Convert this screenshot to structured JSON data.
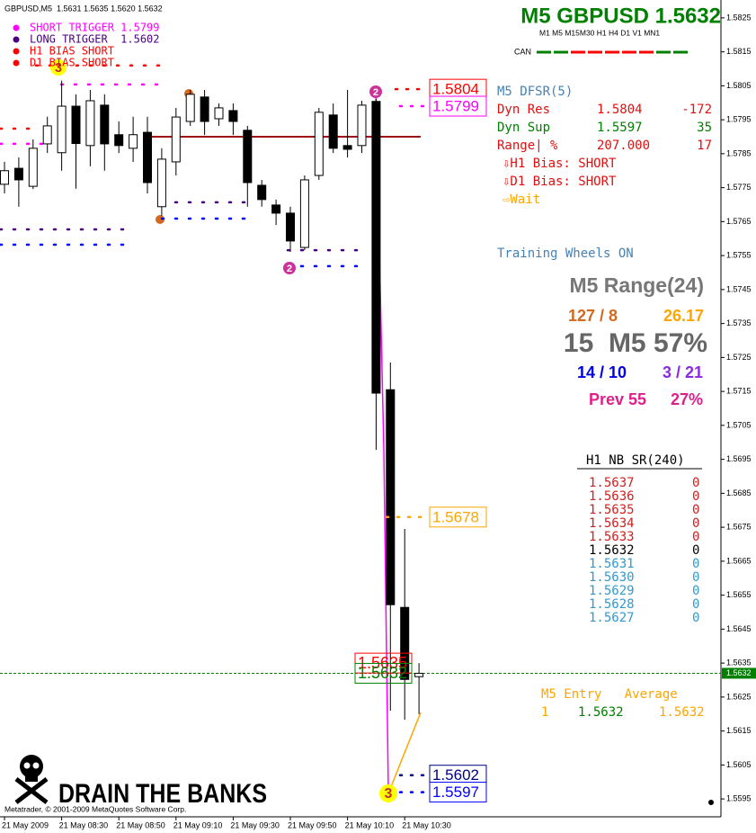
{
  "chart_data": {
    "type": "candlestick",
    "title": "GBPUSD,M5  1.5631 1.5635 1.5620 1.5632",
    "categories": [
      "21 May 2009",
      null,
      null,
      null,
      "21 May 08:30",
      null,
      null,
      null,
      "21 May 08:50",
      null,
      null,
      null,
      "21 May 09:10",
      null,
      null,
      null,
      "21 May 09:30",
      null,
      null,
      null,
      "21 May 09:50",
      null,
      null,
      null,
      "21 May 10:10",
      null,
      null,
      null,
      "21 May 10:30",
      null
    ],
    "open": [
      1.5776,
      1.57807,
      1.57754,
      1.57879,
      1.57853,
      1.5799,
      1.57874,
      1.57993,
      1.57906,
      1.57866,
      1.57913,
      1.57694,
      1.57826,
      1.57945,
      1.58017,
      1.57953,
      1.57977,
      1.57919,
      1.57757,
      1.57699,
      1.57675,
      1.57574,
      1.57786,
      1.57964,
      1.57874,
      1.57874,
      1.58004,
      1.57155,
      1.56514,
      1.5631
    ],
    "high": [
      1.57826,
      1.57839,
      1.57892,
      1.57959,
      1.58065,
      1.58025,
      1.58038,
      1.58025,
      1.57945,
      1.57959,
      1.57959,
      1.57866,
      1.57985,
      1.58038,
      1.58038,
      1.57998,
      1.57998,
      1.57932,
      1.57773,
      1.57715,
      1.57694,
      1.57786,
      1.57985,
      1.57998,
      1.58038,
      1.58006,
      1.58011,
      1.57235,
      1.56745,
      1.5635
    ],
    "low": [
      1.57733,
      1.57694,
      1.57746,
      1.57852,
      1.578,
      1.57747,
      1.57813,
      1.578,
      1.57852,
      1.57826,
      1.57733,
      1.57667,
      1.57786,
      1.57932,
      1.57905,
      1.57932,
      1.57905,
      1.57694,
      1.57694,
      1.5764,
      1.57561,
      1.57566,
      1.57773,
      1.57852,
      1.57839,
      1.57852,
      1.56978,
      1.5621,
      1.56183,
      1.562
    ],
    "close": [
      1.578,
      1.57773,
      1.57866,
      1.57932,
      1.5799,
      1.5788,
      1.58006,
      1.57879,
      1.57874,
      1.57906,
      1.57765,
      1.57834,
      1.57958,
      1.58025,
      1.57945,
      1.57985,
      1.57945,
      1.57765,
      1.57715,
      1.57675,
      1.57593,
      1.57773,
      1.57972,
      1.57866,
      1.57863,
      1.57993,
      1.57145,
      1.56522,
      1.56302,
      1.5632
    ],
    "up_color": "#ffffff",
    "down_color": "#000000",
    "ylim": [
      1.559,
      1.583
    ],
    "yticks": [
      1.5595,
      1.5605,
      1.5615,
      1.5625,
      1.5635,
      1.5645,
      1.5655,
      1.5665,
      1.5675,
      1.5685,
      1.5695,
      1.5705,
      1.5715,
      1.5725,
      1.5735,
      1.5745,
      1.5755,
      1.5765,
      1.5775,
      1.5785,
      1.5795,
      1.5805,
      1.5815,
      1.5825
    ],
    "current_price": 1.5632,
    "current_price_color": "#008000",
    "levels": [
      {
        "value": 1.579,
        "color": "#a01010"
      }
    ],
    "dot_levels": [
      {
        "value": 1.5811,
        "color": "#ff0000"
      },
      {
        "value": 1.58054,
        "color": "#ff00ff"
      },
      {
        "value": 1.57924,
        "color": "#ff0000"
      },
      {
        "value": 1.57879,
        "color": "#ff00ff"
      },
      {
        "value": 1.57627,
        "color": "#4b0082"
      },
      {
        "value": 1.57582,
        "color": "#0000ff"
      },
      {
        "value": 1.57707,
        "color": "#4b0082"
      },
      {
        "value": 1.57659,
        "color": "#0000ff"
      },
      {
        "value": 1.57566,
        "color": "#4b0082"
      },
      {
        "value": 1.57519,
        "color": "#0000ff"
      }
    ],
    "price_labels": [
      {
        "value": 1.5804,
        "color": "#ff0000"
      },
      {
        "value": 1.5799,
        "color": "#ff00ff"
      },
      {
        "value": 1.5678,
        "color": "#ffa500"
      },
      {
        "value": 1.5602,
        "color": "#000080"
      },
      {
        "value": 1.5597,
        "color": "#0000ff"
      },
      {
        "value": 1.5635,
        "color": "#ff0000"
      },
      {
        "value": 1.5632,
        "color": "#008000"
      }
    ],
    "markers": [
      {
        "label": "3",
        "color": "#ffff00"
      },
      {
        "label": "2",
        "color": "#cc3399"
      },
      {
        "label": "2",
        "color": "#cc3399"
      },
      {
        "label": "3",
        "color": "#ffff00"
      }
    ]
  },
  "overlay": {
    "legend": [
      "SHORT TRIGGER 1.5799",
      "LONG TRIGGER  1.5602",
      "H1 BIAS SHORT",
      "D1 BIAS SHORT"
    ],
    "symbol_title": "M5 GBPUSD 1.5632",
    "timeframes": "M1 M5 M15M30 H1 H4 D1 V1 MN1",
    "can": "CAN",
    "dfsr": {
      "title": "M5 DFSR(5)",
      "rows": [
        [
          "Dyn Res",
          "1.5804",
          "-172"
        ],
        [
          "Dyn Sup",
          "1.5597",
          "35"
        ],
        [
          "Range| %",
          "207.000",
          "17"
        ]
      ],
      "h1_bias": "⇩H1 Bias: SHORT",
      "d1_bias": "⇩D1 Bias: SHORT",
      "wait": "⇨Wait"
    },
    "training": "Training Wheels ON",
    "range": {
      "title": "M5 Range(24)",
      "a": "127 / 8",
      "b": "26.17",
      "big": "15  M5 57%",
      "c": "14 / 10",
      "d": "3 / 21",
      "prev": "Prev 55",
      "prev_pct": "27%"
    },
    "nbsr": {
      "title": "H1 NB SR(240)",
      "rows": [
        [
          "1.5637",
          "0"
        ],
        [
          "1.5636",
          "0"
        ],
        [
          "1.5635",
          "0"
        ],
        [
          "1.5634",
          "0"
        ],
        [
          "1.5633",
          "0"
        ],
        [
          "1.5632",
          "0"
        ],
        [
          "1.5631",
          "0"
        ],
        [
          "1.5630",
          "0"
        ],
        [
          "1.5629",
          "0"
        ],
        [
          "1.5628",
          "0"
        ],
        [
          "1.5627",
          "0"
        ]
      ]
    },
    "entry": {
      "header": "M5 Entry   Average",
      "count": "1",
      "entry": "1.5632",
      "average": "1.5632"
    },
    "brand": "DRAIN THE BANKS",
    "copyright": "Metatrader, © 2001-2009 MetaQuotes Software Corp."
  }
}
